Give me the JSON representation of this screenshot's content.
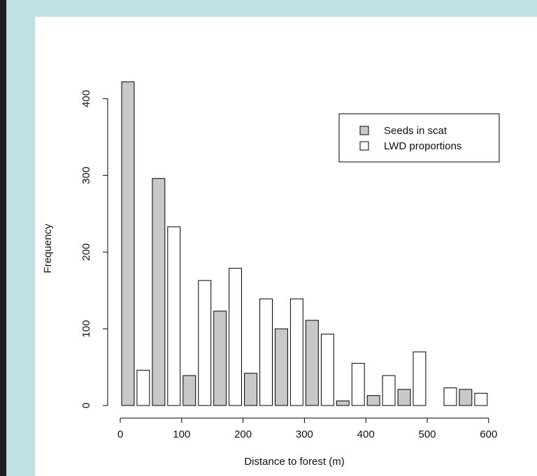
{
  "colors": {
    "background": "#bfe1e3",
    "panel": "#ffffff",
    "seeds_fill": "#c8c8c8",
    "lwd_fill": "#ffffff",
    "stroke": "#000000"
  },
  "chart_data": {
    "type": "bar",
    "title": "",
    "xlabel": "Distance to forest (m)",
    "ylabel": "Frequency",
    "xlim": [
      0,
      625
    ],
    "ylim": [
      0,
      420
    ],
    "xticks": [
      0,
      100,
      200,
      300,
      400,
      500,
      600
    ],
    "yticks": [
      0,
      100,
      200,
      300,
      400
    ],
    "bin_width": 50,
    "bins_start": [
      0,
      50,
      100,
      150,
      200,
      250,
      300,
      350,
      400,
      450,
      500,
      550
    ],
    "grid": false,
    "legend_position": "top-right",
    "series": [
      {
        "name": "Seeds in scat",
        "fill": "#c8c8c8",
        "values": [
          422,
          296,
          39,
          123,
          42,
          100,
          111,
          6,
          13,
          21,
          0,
          21
        ]
      },
      {
        "name": "LWD proportions",
        "fill": "#ffffff",
        "values": [
          46,
          233,
          163,
          179,
          139,
          139,
          93,
          55,
          39,
          70,
          23,
          16
        ]
      }
    ]
  }
}
